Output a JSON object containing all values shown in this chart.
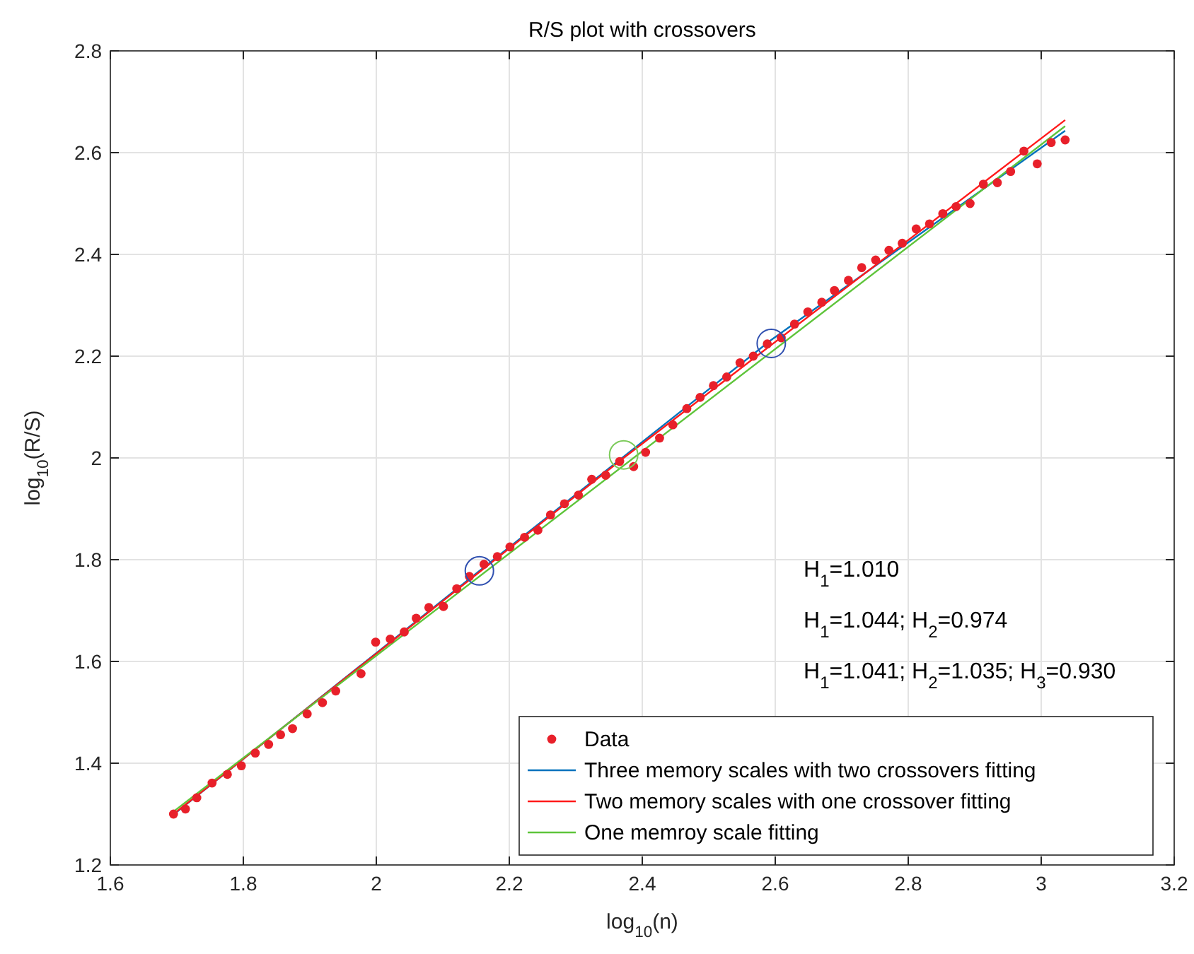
{
  "chart_data": {
    "type": "scatter",
    "title": "R/S plot with crossovers",
    "xlabel": "log$_{10}$(n)",
    "ylabel": "log$_{10}$(R/S)",
    "xlim": [
      1.6,
      3.2
    ],
    "xticks": [
      1.6,
      1.8,
      2,
      2.2,
      2.4,
      2.6,
      2.8,
      3,
      3.2
    ],
    "ylim": [
      1.2,
      2.8
    ],
    "yticks": [
      1.2,
      1.4,
      1.6,
      1.8,
      2,
      2.2,
      2.4,
      2.6,
      2.8
    ],
    "grid": true,
    "legend": "bottom right",
    "annotations": [
      "H$_{1}$=1.010",
      "H$_{1}$=1.044; H$_{2}$=0.974",
      "H$_{1}$=1.041; H$_{2}$=1.035; H$_{3}$=0.930"
    ],
    "series": [
      {
        "name": "Data",
        "marker": "circle",
        "color": "#e8202a",
        "x": [
          1.695,
          1.713,
          1.73,
          1.753,
          1.776,
          1.797,
          1.818,
          1.838,
          1.856,
          1.874,
          1.896,
          1.919,
          1.939,
          1.977,
          1.999,
          2.021,
          2.042,
          2.06,
          2.079,
          2.101,
          2.121,
          2.14,
          2.162,
          2.182,
          2.201,
          2.223,
          2.243,
          2.262,
          2.283,
          2.304,
          2.324,
          2.345,
          2.366,
          2.387,
          2.405,
          2.426,
          2.446,
          2.467,
          2.487,
          2.507,
          2.527,
          2.547,
          2.567,
          2.588,
          2.609,
          2.629,
          2.649,
          2.67,
          2.689,
          2.71,
          2.73,
          2.751,
          2.771,
          2.791,
          2.812,
          2.832,
          2.852,
          2.872,
          2.893,
          2.913,
          2.934,
          2.954,
          2.974,
          2.994,
          3.015,
          3.036
        ],
        "values": [
          1.3,
          1.31,
          1.332,
          1.361,
          1.378,
          1.395,
          1.42,
          1.437,
          1.456,
          1.468,
          1.497,
          1.519,
          1.542,
          1.576,
          1.638,
          1.644,
          1.658,
          1.685,
          1.706,
          1.708,
          1.743,
          1.767,
          1.791,
          1.806,
          1.825,
          1.844,
          1.858,
          1.888,
          1.91,
          1.927,
          1.958,
          1.966,
          1.993,
          1.983,
          2.011,
          2.039,
          2.065,
          2.097,
          2.119,
          2.142,
          2.159,
          2.187,
          2.2,
          2.224,
          2.236,
          2.263,
          2.287,
          2.306,
          2.329,
          2.349,
          2.374,
          2.389,
          2.408,
          2.422,
          2.45,
          2.46,
          2.48,
          2.494,
          2.5,
          2.538,
          2.541,
          2.563,
          2.603,
          2.578,
          2.62,
          2.625
        ]
      },
      {
        "name": "Three memory scales with two crossovers fitting",
        "type": "line",
        "marker": "none",
        "color": "#0072bd",
        "x": [
          1.695,
          2.155,
          2.594,
          3.036
        ],
        "values": [
          1.299,
          1.778,
          2.232,
          2.643
        ]
      },
      {
        "name": "Two memory scales with one crossover fitting",
        "type": "line",
        "marker": "none",
        "color": "#ff1a1a",
        "x": [
          1.695,
          2.372,
          3.036
        ],
        "values": [
          1.3,
          2.0,
          2.664
        ]
      },
      {
        "name": "One memroy scale fitting",
        "type": "line",
        "marker": "none",
        "color": "#5ec43a",
        "x": [
          1.695,
          3.036
        ],
        "values": [
          1.305,
          2.652
        ]
      },
      {
        "marker": "circle",
        "color": "#3050b0",
        "x": [
          2.155,
          2.594
        ],
        "values": [
          1.778,
          2.225
        ]
      },
      {
        "marker": "circle",
        "color": "#7ccb5a",
        "x": [
          2.372
        ],
        "values": [
          2.006
        ]
      }
    ]
  }
}
